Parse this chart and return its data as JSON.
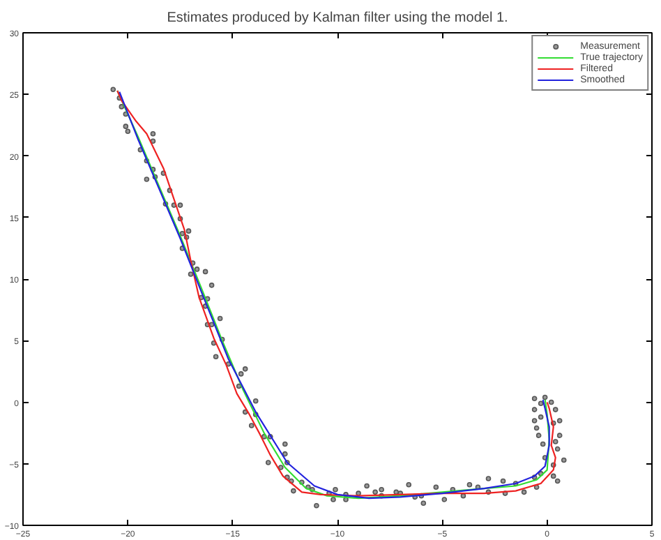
{
  "chart_data": {
    "type": "line",
    "title": "Estimates produced by Kalman filter using the model 1.",
    "xlim": [
      -25,
      5
    ],
    "ylim": [
      -10,
      30
    ],
    "xticks": [
      -25,
      -20,
      -15,
      -10,
      -5,
      0,
      5
    ],
    "yticks": [
      -10,
      -5,
      0,
      5,
      10,
      15,
      20,
      25,
      30
    ],
    "grid": false,
    "legend": "top right",
    "series": [
      {
        "name": "Measurement",
        "type": "scatter",
        "marker": "circle",
        "color": "#555555",
        "x": [
          -20.7,
          -20.4,
          -20.3,
          -20.1,
          -20.1,
          -20.0,
          -18.8,
          -18.8,
          -19.4,
          -19.1,
          -18.8,
          -18.3,
          -19.1,
          -18.7,
          -18.0,
          -18.2,
          -17.8,
          -17.5,
          -17.5,
          -17.1,
          -17.4,
          -17.2,
          -17.4,
          -16.9,
          -16.7,
          -16.3,
          -17.0,
          -16.0,
          -16.5,
          -16.2,
          -16.3,
          -15.6,
          -16.2,
          -16.0,
          -15.9,
          -15.8,
          -15.5,
          -15.2,
          -14.4,
          -14.6,
          -14.7,
          -13.9,
          -14.4,
          -13.9,
          -14.1,
          -13.5,
          -13.2,
          -12.5,
          -12.5,
          -13.3,
          -12.4,
          -12.7,
          -12.4,
          -12.2,
          -11.7,
          -12.1,
          -11.4,
          -11.2,
          -11.0,
          -10.4,
          -10.2,
          -10.1,
          -9.6,
          -9.6,
          -9.0,
          -8.6,
          -8.2,
          -7.9,
          -7.9,
          -7.2,
          -6.6,
          -6.0,
          -7.0,
          -6.3,
          -5.9,
          -5.3,
          -4.9,
          -4.5,
          -4.0,
          -3.7,
          -3.3,
          -2.8,
          -2.8,
          -2.1,
          -2.0,
          -1.5,
          -1.1,
          -0.6,
          -0.5,
          -0.3,
          0.3,
          0.5,
          0.3,
          0.8,
          -0.1,
          0.5,
          0.4,
          -0.2,
          0.6,
          -0.4,
          0.3,
          -0.5,
          0.6,
          -0.6,
          0.4,
          -0.6,
          -0.3,
          -0.6,
          -0.1,
          -0.3,
          0.2
        ],
        "values": [
          25.4,
          24.7,
          24.0,
          23.4,
          22.4,
          22.0,
          21.8,
          21.2,
          20.5,
          19.6,
          18.9,
          18.6,
          18.1,
          18.3,
          17.2,
          16.1,
          16.0,
          16.0,
          14.9,
          13.9,
          13.7,
          13.4,
          12.5,
          11.3,
          10.8,
          10.6,
          10.4,
          9.5,
          8.5,
          8.4,
          7.8,
          6.8,
          6.3,
          6.3,
          4.8,
          3.7,
          5.1,
          3.1,
          2.7,
          2.3,
          1.3,
          0.1,
          -0.8,
          -1.0,
          -1.9,
          -2.8,
          -2.8,
          -3.4,
          -4.2,
          -4.9,
          -4.9,
          -5.3,
          -6.1,
          -6.4,
          -6.5,
          -7.2,
          -6.9,
          -7.1,
          -8.4,
          -7.4,
          -7.9,
          -7.1,
          -7.5,
          -7.9,
          -7.4,
          -6.8,
          -7.3,
          -7.1,
          -7.6,
          -7.3,
          -6.7,
          -7.6,
          -7.4,
          -7.7,
          -8.2,
          -6.9,
          -7.9,
          -7.1,
          -7.6,
          -6.7,
          -6.9,
          -6.2,
          -7.3,
          -6.4,
          -7.4,
          -6.6,
          -7.3,
          -6.1,
          -6.9,
          -5.8,
          -6.0,
          -6.4,
          -5.1,
          -4.7,
          -4.5,
          -3.8,
          -3.2,
          -3.4,
          -2.7,
          -2.7,
          -1.7,
          -2.1,
          -1.5,
          -1.5,
          -0.6,
          -0.6,
          -1.2,
          0.3,
          0.4,
          -0.1,
          0.0
        ]
      },
      {
        "name": "True trajectory",
        "color": "#33dd33",
        "x": [
          -20.5,
          -19.5,
          -18.5,
          -17.5,
          -16.5,
          -15.5,
          -14.5,
          -13.5,
          -12.5,
          -11.5,
          -10.5,
          -9,
          -7,
          -5,
          -3,
          -1.5,
          -0.5,
          0,
          0.1,
          0,
          -0.1
        ],
        "values": [
          25.3,
          21.5,
          17.5,
          13.5,
          9.3,
          5.0,
          1.0,
          -2.5,
          -5.3,
          -7.0,
          -7.6,
          -7.8,
          -7.6,
          -7.3,
          -7.0,
          -6.8,
          -6.3,
          -5.5,
          -3,
          -1,
          0.2
        ]
      },
      {
        "name": "Filtered",
        "color": "#ee2222",
        "x": [
          -20.5,
          -20.3,
          -19.6,
          -19.1,
          -18.3,
          -17.8,
          -17.3,
          -17.0,
          -16.6,
          -15.9,
          -15.3,
          -14.8,
          -14.2,
          -13.7,
          -13.2,
          -12.6,
          -11.7,
          -10.8,
          -9,
          -7,
          -5,
          -3,
          -1.5,
          -0.3,
          0.3,
          0.4,
          0.2,
          0.3,
          0.1,
          0
        ],
        "values": [
          25.3,
          24.5,
          22.8,
          21.8,
          19,
          16.5,
          14,
          11.5,
          8.5,
          5.2,
          3.0,
          0.7,
          -1.0,
          -2.6,
          -4.3,
          -6,
          -7.3,
          -7.5,
          -7.6,
          -7.5,
          -7.4,
          -7.4,
          -7.2,
          -6.6,
          -5.5,
          -4.5,
          -3.5,
          -2,
          -0.5,
          0
        ]
      },
      {
        "name": "Smoothed",
        "color": "#2222dd",
        "x": [
          -20.4,
          -19.5,
          -18.5,
          -17.5,
          -16.5,
          -15.2,
          -13.9,
          -12.4,
          -11.1,
          -10,
          -8.5,
          -7,
          -5,
          -3,
          -1.5,
          -0.6,
          -0.1,
          0.1,
          0.1,
          -0.1,
          -0.2
        ],
        "values": [
          25.2,
          21.3,
          17.3,
          13.3,
          9.0,
          3.5,
          -0.8,
          -4.9,
          -6.8,
          -7.5,
          -7.8,
          -7.7,
          -7.4,
          -7.0,
          -6.6,
          -6.0,
          -5.2,
          -3.5,
          -2,
          -0.5,
          0.2
        ]
      }
    ]
  }
}
